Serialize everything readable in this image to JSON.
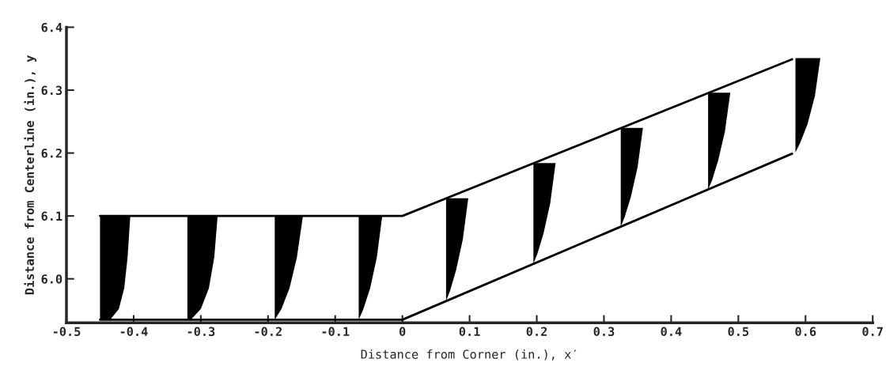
{
  "chart_data": {
    "type": "line",
    "xlabel": "Distance from Corner (in.), x′",
    "ylabel": "Distance from Centerline (in.), y",
    "xlim": [
      -0.5,
      0.7
    ],
    "xticks": [
      -0.5,
      -0.4,
      -0.3,
      -0.2,
      -0.1,
      0,
      0.1,
      0.2,
      0.3,
      0.4,
      0.5,
      0.6,
      0.7
    ],
    "ylim": [
      5.93,
      6.4
    ],
    "yticks": [
      {
        "value": 6.0,
        "label": "6.0"
      },
      {
        "value": 6.1,
        "label": "6.1"
      },
      {
        "value": 6.2,
        "label": "6.2"
      },
      {
        "value": 6.3,
        "label": "6.3"
      },
      {
        "value": 6.4,
        "label": "6.4"
      }
    ],
    "grid": false,
    "legend": false,
    "series": [
      {
        "color": "#000000",
        "x": [
          -0.45,
          0,
          0.58
        ],
        "values": [
          6.1,
          6.1,
          6.349
        ]
      },
      {
        "color": "#000000",
        "x": [
          -0.45,
          0,
          0.58
        ],
        "values": [
          5.935,
          5.935,
          6.199
        ]
      },
      {
        "type": "area",
        "color": "#000000",
        "x": [
          -0.45,
          -0.435,
          -0.422,
          -0.414,
          -0.409,
          -0.405,
          -0.45
        ],
        "values": [
          5.935,
          5.935,
          5.952,
          5.985,
          6.034,
          6.1,
          6.1
        ]
      },
      {
        "type": "area",
        "color": "#000000",
        "x": [
          -0.32,
          -0.315,
          -0.3,
          -0.288,
          -0.28,
          -0.275,
          -0.32
        ],
        "values": [
          5.935,
          5.935,
          5.952,
          5.985,
          6.034,
          6.1,
          6.1
        ]
      },
      {
        "type": "area",
        "color": "#000000",
        "x": [
          -0.19,
          -0.19,
          -0.18,
          -0.168,
          -0.157,
          -0.148,
          -0.19
        ],
        "values": [
          5.935,
          5.935,
          5.952,
          5.985,
          6.034,
          6.1,
          6.1
        ]
      },
      {
        "type": "area",
        "color": "#000000",
        "x": [
          -0.065,
          -0.065,
          -0.058,
          -0.048,
          -0.038,
          -0.03,
          -0.065
        ],
        "values": [
          5.935,
          5.935,
          5.952,
          5.985,
          6.034,
          6.1,
          6.1
        ]
      },
      {
        "type": "area",
        "color": "#000000",
        "x": [
          0.065,
          0.071,
          0.08,
          0.09,
          0.098,
          0.065
        ],
        "values": [
          5.965,
          5.981,
          6.014,
          6.063,
          6.128,
          6.128
        ]
      },
      {
        "type": "area",
        "color": "#000000",
        "x": [
          0.195,
          0.201,
          0.21,
          0.22,
          0.228,
          0.195
        ],
        "values": [
          6.024,
          6.04,
          6.072,
          6.12,
          6.184,
          6.184
        ]
      },
      {
        "type": "area",
        "color": "#000000",
        "x": [
          0.325,
          0.331,
          0.34,
          0.35,
          0.358,
          0.325
        ],
        "values": [
          6.083,
          6.099,
          6.13,
          6.177,
          6.24,
          6.24
        ]
      },
      {
        "type": "area",
        "color": "#000000",
        "x": [
          0.455,
          0.461,
          0.47,
          0.48,
          0.488,
          0.455
        ],
        "values": [
          6.142,
          6.157,
          6.188,
          6.234,
          6.296,
          6.296
        ]
      },
      {
        "type": "area",
        "color": "#000000",
        "x": [
          0.585,
          0.592,
          0.603,
          0.614,
          0.622,
          0.585
        ],
        "values": [
          6.201,
          6.216,
          6.246,
          6.291,
          6.351,
          6.351
        ]
      }
    ]
  }
}
